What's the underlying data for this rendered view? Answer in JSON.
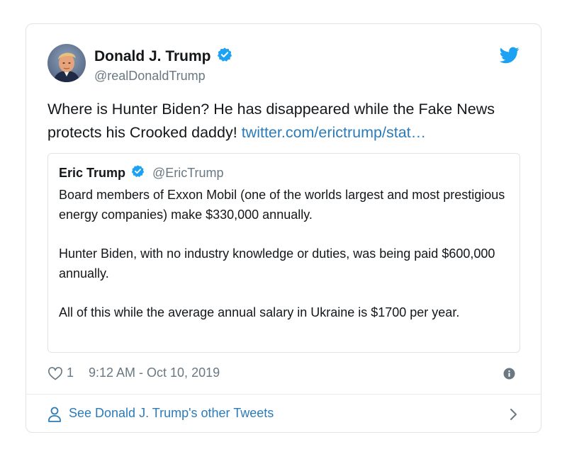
{
  "tweet": {
    "author": {
      "display_name": "Donald J. Trump",
      "handle": "@realDonaldTrump",
      "verified": true,
      "avatar_icon": "avatar-photo"
    },
    "text": "Where is Hunter Biden? He has disappeared while the Fake News protects his Crooked daddy! ",
    "link_text": "twitter.com/erictrump/stat…",
    "likes": "1",
    "timestamp": "9:12 AM - Oct 10, 2019"
  },
  "quoted_tweet": {
    "author": {
      "display_name": "Eric Trump",
      "handle": "@EricTrump",
      "verified": true
    },
    "paragraphs": [
      "Board members of Exxon Mobil (one of the worlds largest and most prestigious energy companies) make $330,000 annually.",
      "Hunter Biden, with no industry knowledge or duties, was being paid $600,000 annually.",
      "All of this while the average annual salary in Ukraine is $1700 per year."
    ]
  },
  "footer": {
    "label": "See Donald J. Trump's other Tweets"
  },
  "colors": {
    "link": "#2b7bb9",
    "verified": "#1da1f2",
    "muted": "#697882",
    "border": "#dfe4e8"
  },
  "icons": {
    "brand": "twitter-bird-icon",
    "verified": "verified-badge-icon",
    "like": "heart-icon",
    "info": "info-icon",
    "person": "person-icon",
    "chevron": "chevron-right-icon"
  }
}
